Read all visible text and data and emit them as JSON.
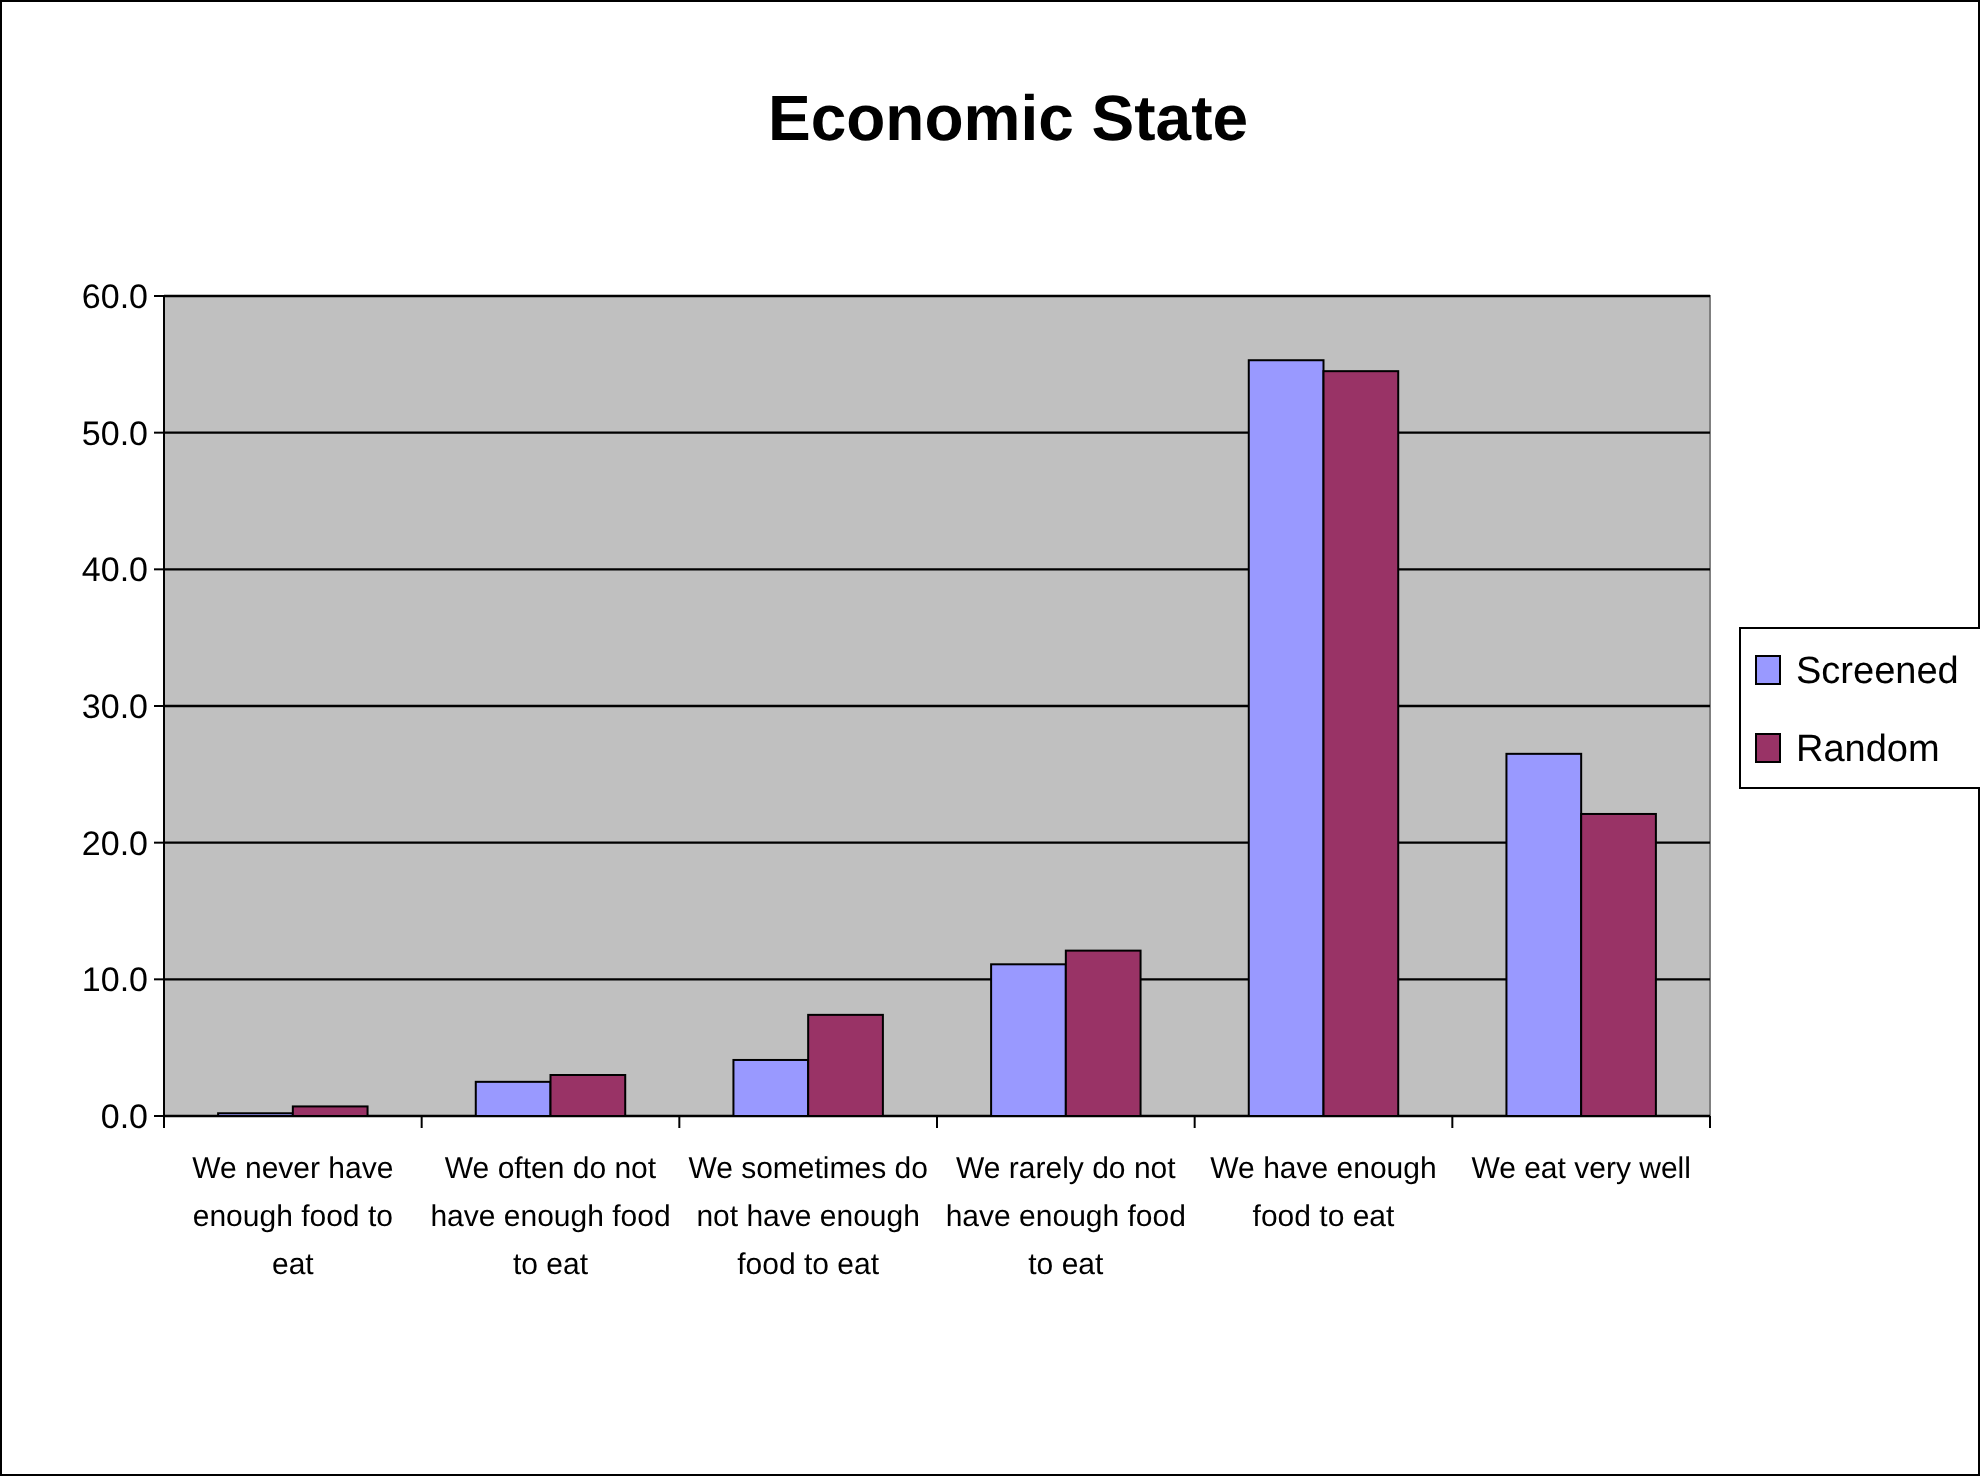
{
  "chart_data": {
    "type": "bar",
    "title": "Economic State",
    "categories": [
      "We never have enough food to eat",
      "We often do not have enough food to eat",
      "We sometimes do not have enough food to eat",
      "We rarely do not have enough food to eat",
      "We have enough food to eat",
      "We eat very well"
    ],
    "series": [
      {
        "name": "Screened",
        "color": "#9999ff",
        "values": [
          0.2,
          2.5,
          4.1,
          11.1,
          55.3,
          26.5
        ]
      },
      {
        "name": "Random",
        "color": "#993366",
        "values": [
          0.7,
          3.0,
          7.4,
          12.1,
          54.5,
          22.1
        ]
      }
    ],
    "ylim": [
      0,
      60
    ],
    "yticks": [
      {
        "value": 0,
        "label": "0.0"
      },
      {
        "value": 10,
        "label": "10.0"
      },
      {
        "value": 20,
        "label": "20.0"
      },
      {
        "value": 30,
        "label": "30.0"
      },
      {
        "value": 40,
        "label": "40.0"
      },
      {
        "value": 50,
        "label": "50.0"
      },
      {
        "value": 60,
        "label": "60.0"
      }
    ],
    "grid": "y",
    "legend": "right"
  }
}
